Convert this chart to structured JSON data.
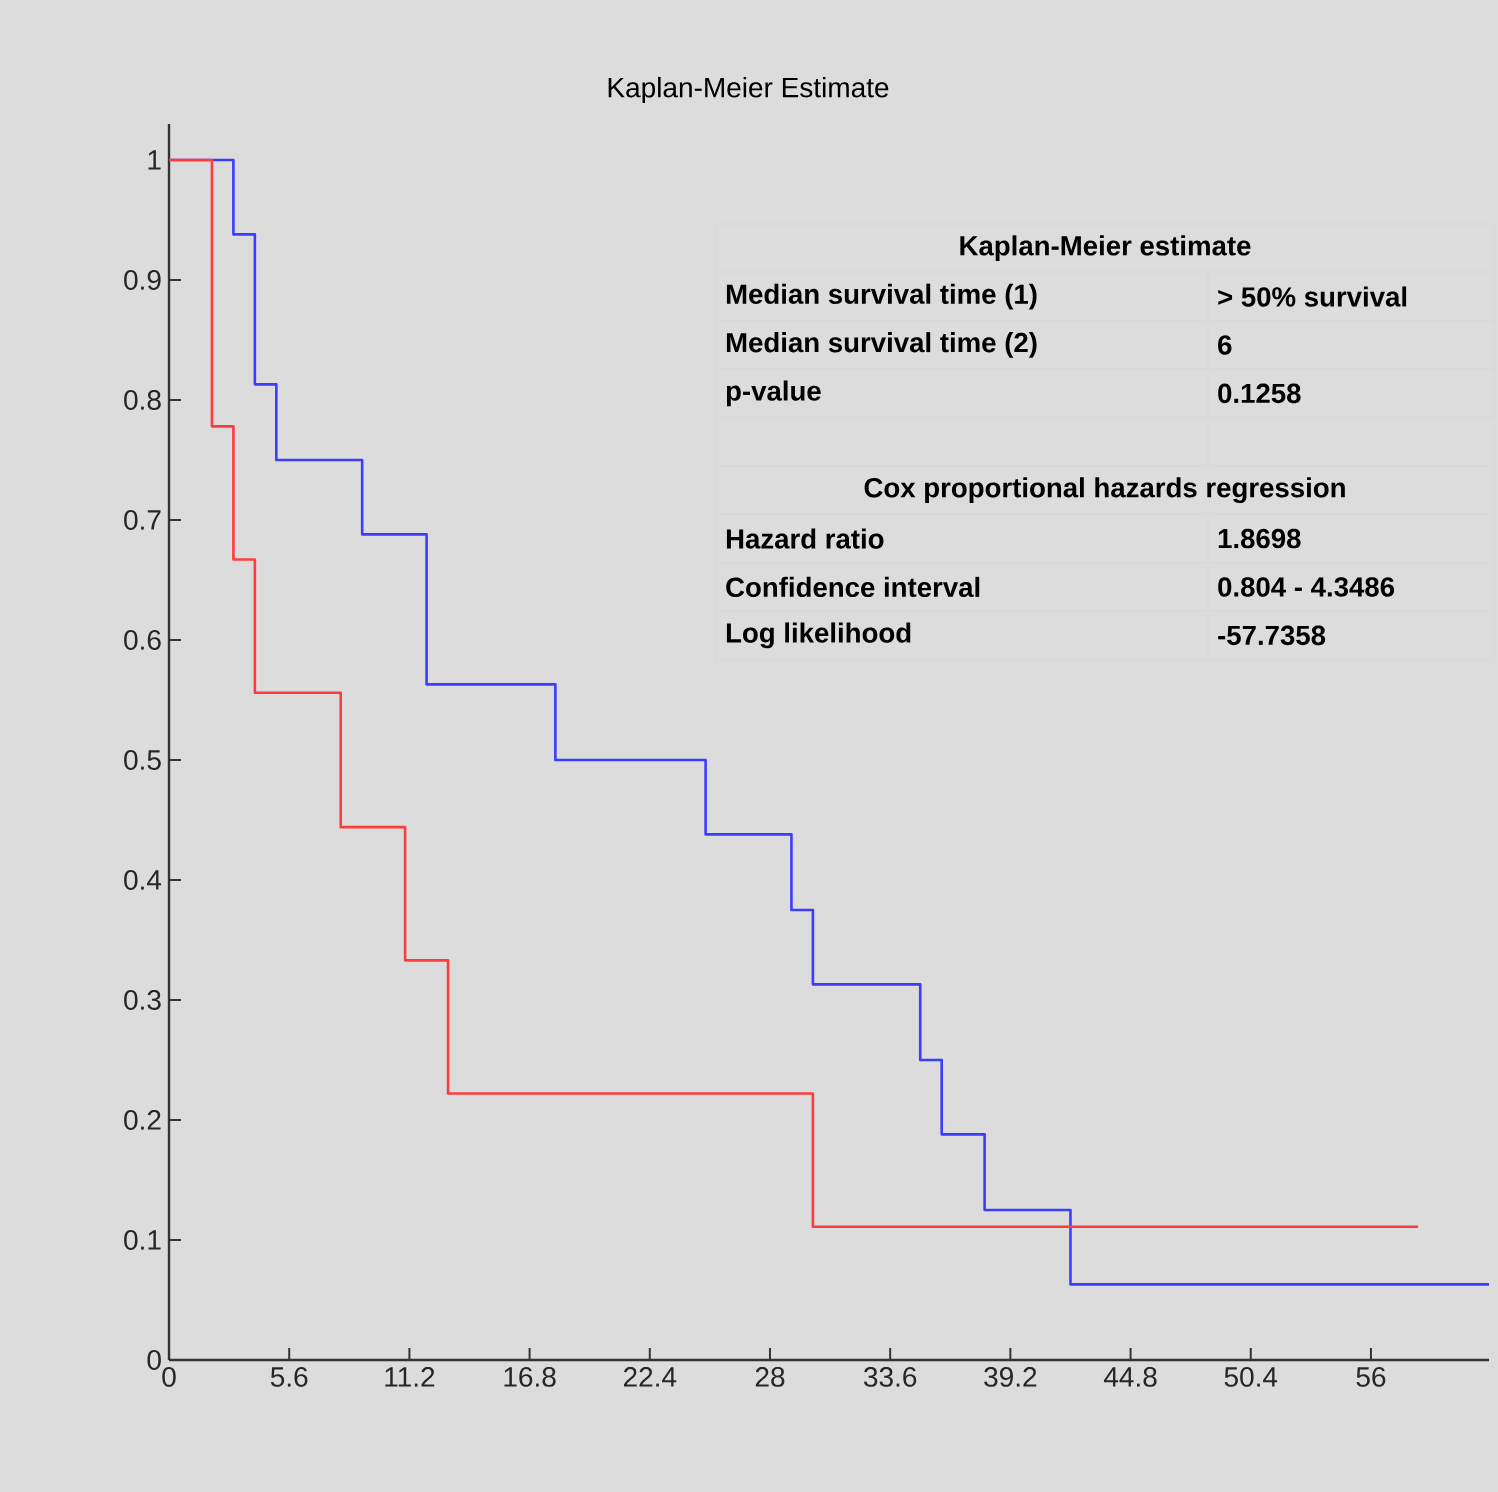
{
  "chart_data": {
    "type": "step",
    "title": "Kaplan-Meier Estimate",
    "xlim": [
      0,
      61.5
    ],
    "ylim": [
      0,
      1.03
    ],
    "xticks": [
      0,
      5.6,
      11.2,
      16.8,
      22.4,
      28,
      33.6,
      39.2,
      44.8,
      50.4,
      56
    ],
    "yticks": [
      0,
      0.1,
      0.2,
      0.3,
      0.4,
      0.5,
      0.6,
      0.7,
      0.8,
      0.9,
      1
    ],
    "grid": false,
    "marker": "none",
    "line_style": "solid",
    "series": [
      {
        "color": "#3c3cff",
        "x": [
          0,
          3,
          4,
          5,
          9,
          12,
          18,
          25,
          29,
          30,
          35,
          36,
          38,
          42,
          61.5
        ],
        "values": [
          1,
          0.938,
          0.813,
          0.75,
          0.688,
          0.563,
          0.5,
          0.438,
          0.375,
          0.313,
          0.25,
          0.188,
          0.125,
          0.063,
          0.063
        ]
      },
      {
        "color": "#ff3c3c",
        "x": [
          0,
          2,
          3,
          4,
          8,
          11,
          13,
          30,
          58.2
        ],
        "values": [
          1,
          0.778,
          0.667,
          0.556,
          0.444,
          0.333,
          0.222,
          0.111,
          0.111
        ]
      }
    ],
    "annotations": [
      "Kaplan-Meier estimate",
      "Median survival time (1)",
      "> 50% survival",
      "Median survival time (2)",
      "6",
      "p-value",
      "0.1258",
      "Cox proportional hazards regression",
      "Hazard ratio",
      "1.8698",
      "Confidence interval",
      "0.804 - 4.3486",
      "Log likelihood",
      "-57.7358"
    ]
  }
}
